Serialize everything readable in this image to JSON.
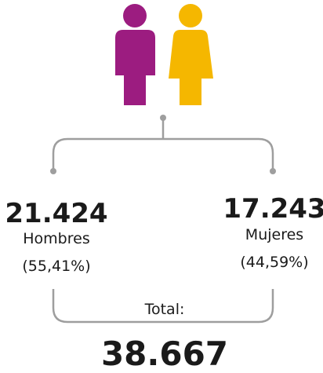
{
  "men": {
    "count": "21.424",
    "label": "Hombres",
    "share": "(55,41%)"
  },
  "women": {
    "count": "17.243",
    "label": "Mujeres",
    "share": "(44,59%)"
  },
  "total": {
    "label": "Total:",
    "count": "38.667"
  }
}
